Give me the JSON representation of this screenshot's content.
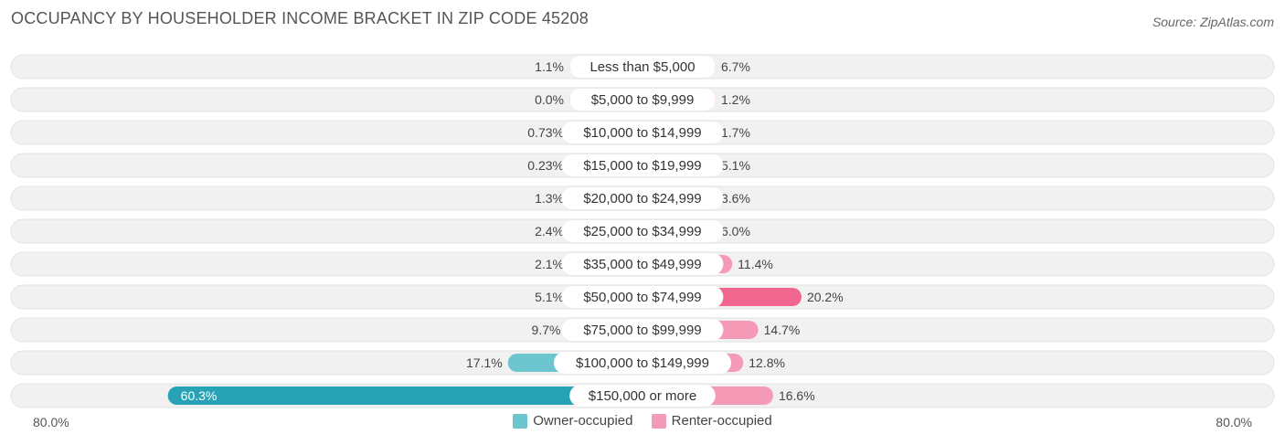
{
  "title": "OCCUPANCY BY HOUSEHOLDER INCOME BRACKET IN ZIP CODE 45208",
  "source": "Source: ZipAtlas.com",
  "legend": {
    "owner_label": "Owner-occupied",
    "renter_label": "Renter-occupied"
  },
  "axis": {
    "left_label": "80.0%",
    "right_label": "80.0%"
  },
  "colors": {
    "owner": "#6cc5cf",
    "owner_strong": "#27a3b5",
    "renter": "#f59ab6",
    "renter_strong": "#f0668f",
    "row_bg": "#f1f1f1",
    "row_border": "#e2e2e2"
  },
  "chart_data": {
    "type": "bar",
    "orientation": "horizontal-diverging",
    "title": "OCCUPANCY BY HOUSEHOLDER INCOME BRACKET IN ZIP CODE 45208",
    "xlim": [
      -80,
      80
    ],
    "categories": [
      "Less than $5,000",
      "$5,000 to $9,999",
      "$10,000 to $14,999",
      "$15,000 to $19,999",
      "$20,000 to $24,999",
      "$25,000 to $34,999",
      "$35,000 to $49,999",
      "$50,000 to $74,999",
      "$75,000 to $99,999",
      "$100,000 to $149,999",
      "$150,000 or more"
    ],
    "series": [
      {
        "name": "Owner-occupied",
        "values": [
          1.1,
          0.0,
          0.73,
          0.23,
          1.3,
          2.4,
          2.1,
          5.1,
          9.7,
          17.1,
          60.3
        ],
        "labels": [
          "1.1%",
          "0.0%",
          "0.73%",
          "0.23%",
          "1.3%",
          "2.4%",
          "2.1%",
          "5.1%",
          "9.7%",
          "17.1%",
          "60.3%"
        ]
      },
      {
        "name": "Renter-occupied",
        "values": [
          6.7,
          1.2,
          1.7,
          5.1,
          3.6,
          6.0,
          11.4,
          20.2,
          14.7,
          12.8,
          16.6
        ],
        "labels": [
          "6.7%",
          "1.2%",
          "1.7%",
          "5.1%",
          "3.6%",
          "6.0%",
          "11.4%",
          "20.2%",
          "14.7%",
          "12.8%",
          "16.6%"
        ]
      }
    ]
  }
}
